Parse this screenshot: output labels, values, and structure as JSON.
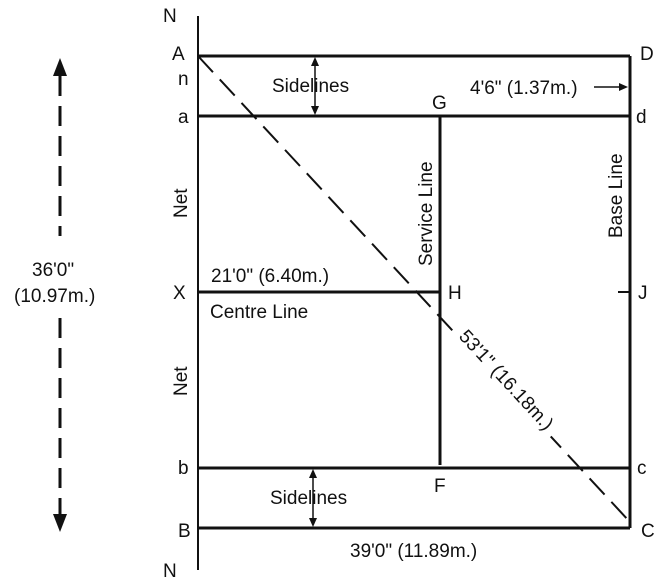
{
  "points": {
    "N_top": "N",
    "N_bottom": "N",
    "A": "A",
    "n": "n",
    "a": "a",
    "X": "X",
    "b": "b",
    "B": "B",
    "D": "D",
    "d": "d",
    "J": "J",
    "c": "c",
    "C": "C",
    "G": "G",
    "H": "H",
    "F": "F"
  },
  "labels": {
    "sidelines_top": "Sidelines",
    "sidelines_bottom": "Sidelines",
    "alley_width": "4'6\" (1.37m.)",
    "service_line": "Service Line",
    "base_line": "Base Line",
    "net_upper": "Net",
    "net_lower": "Net",
    "service_length": "21'0\" (6.40m.)",
    "centre_line": "Centre Line",
    "diagonal": "53'1\" (16.18m.)",
    "length": "39'0\" (11.89m.)",
    "width_ft": "36'0\"",
    "width_m": "(10.97m.)"
  },
  "colors": {
    "line": "#111111",
    "background": "#ffffff"
  }
}
